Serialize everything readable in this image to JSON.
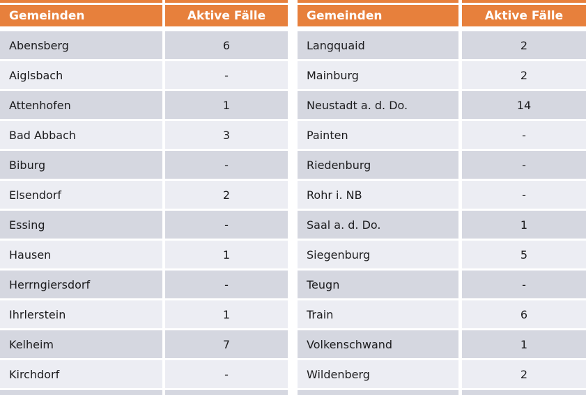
{
  "theme": {
    "accent": "#E7803C",
    "row_dark": "#D5D7E0",
    "row_light": "#ECEDF3",
    "header_text": "#FFFFFF",
    "body_text": "#1C1C1E",
    "background": "#FFFFFF"
  },
  "left_table": {
    "headers": {
      "municipality": "Gemeinden",
      "cases": "Aktive Fälle"
    },
    "rows": [
      {
        "name": "Abensberg",
        "value": "6"
      },
      {
        "name": "Aiglsbach",
        "value": "-"
      },
      {
        "name": "Attenhofen",
        "value": "1"
      },
      {
        "name": "Bad Abbach",
        "value": "3"
      },
      {
        "name": "Biburg",
        "value": "-"
      },
      {
        "name": "Elsendorf",
        "value": "2"
      },
      {
        "name": "Essing",
        "value": "-"
      },
      {
        "name": "Hausen",
        "value": "1"
      },
      {
        "name": "Herrngiersdorf",
        "value": "-"
      },
      {
        "name": "Ihrlerstein",
        "value": "1"
      },
      {
        "name": "Kelheim",
        "value": "7"
      },
      {
        "name": "Kirchdorf",
        "value": "-"
      }
    ]
  },
  "right_table": {
    "headers": {
      "municipality": "Gemeinden",
      "cases": "Aktive Fälle"
    },
    "rows": [
      {
        "name": "Langquaid",
        "value": "2"
      },
      {
        "name": "Mainburg",
        "value": "2"
      },
      {
        "name": "Neustadt a. d. Do.",
        "value": "14"
      },
      {
        "name": "Painten",
        "value": "-"
      },
      {
        "name": "Riedenburg",
        "value": "-"
      },
      {
        "name": "Rohr i. NB",
        "value": "-"
      },
      {
        "name": "Saal a. d. Do.",
        "value": "1"
      },
      {
        "name": "Siegenburg",
        "value": "5"
      },
      {
        "name": "Teugn",
        "value": "-"
      },
      {
        "name": "Train",
        "value": "6"
      },
      {
        "name": "Volkenschwand",
        "value": "1"
      },
      {
        "name": "Wildenberg",
        "value": "2"
      }
    ]
  }
}
